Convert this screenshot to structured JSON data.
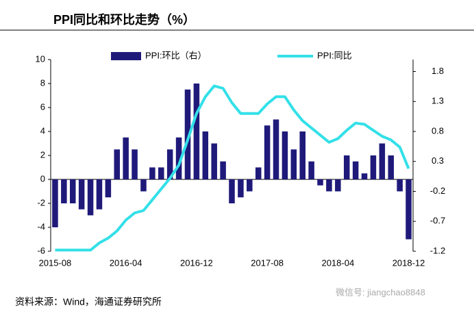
{
  "chart_data": {
    "type": "bar_line",
    "title": "PPI同比和环比走势（%）",
    "source": "资料来源：Wind，海通证券研究所",
    "watermark": "微信号: jiangchao8848",
    "categories": [
      "2015-08",
      null,
      null,
      null,
      null,
      null,
      null,
      null,
      "2016-04",
      null,
      null,
      null,
      null,
      null,
      null,
      null,
      "2016-12",
      null,
      null,
      null,
      null,
      null,
      null,
      null,
      "2017-08",
      null,
      null,
      null,
      null,
      null,
      null,
      null,
      "2018-04",
      null,
      null,
      null,
      null,
      null,
      null,
      null,
      "2018-12"
    ],
    "series": [
      {
        "name": "PPI:环比（右）",
        "type": "bar",
        "axis": "y2",
        "color": "#1f1a7a",
        "values": [
          -0.8,
          -0.4,
          -0.4,
          -0.5,
          -0.6,
          -0.5,
          -0.3,
          0.5,
          0.7,
          0.5,
          -0.2,
          0.2,
          0.2,
          0.5,
          0.7,
          1.5,
          1.6,
          0.8,
          0.6,
          0.3,
          -0.4,
          -0.3,
          -0.2,
          0.2,
          0.9,
          1.0,
          0.8,
          0.5,
          0.8,
          0.3,
          -0.1,
          -0.2,
          -0.2,
          0.4,
          0.3,
          0.1,
          0.4,
          0.6,
          0.4,
          -0.2,
          -1.0
        ]
      },
      {
        "name": "PPI:同比",
        "type": "line",
        "axis": "y",
        "color": "#33e0e8",
        "values": [
          -5.9,
          -5.9,
          -5.9,
          -5.9,
          -5.9,
          -5.3,
          -4.9,
          -4.3,
          -3.4,
          -2.8,
          -2.6,
          -1.7,
          -0.8,
          0.1,
          1.2,
          3.3,
          5.5,
          6.9,
          7.8,
          7.6,
          6.4,
          5.5,
          5.5,
          5.5,
          6.3,
          6.9,
          6.9,
          5.8,
          4.9,
          4.3,
          3.7,
          3.1,
          3.4,
          4.1,
          4.7,
          4.6,
          4.1,
          3.6,
          3.3,
          2.7,
          0.9
        ]
      }
    ],
    "ylim": [
      -6,
      10
    ],
    "yticks": [
      -6,
      -4,
      -2,
      0,
      2,
      4,
      6,
      8,
      10
    ],
    "y2lim": [
      -1.2,
      2.0
    ],
    "y2ticks": [
      -1.2,
      -0.7,
      -0.2,
      0.3,
      0.8,
      1.3,
      1.8
    ]
  }
}
